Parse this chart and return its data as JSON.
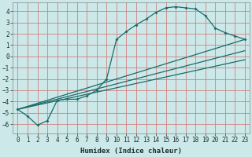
{
  "xlabel": "Humidex (Indice chaleur)",
  "bg_color": "#cce8e8",
  "grid_color": "#d08080",
  "line_color": "#1a6b6b",
  "xlim": [
    -0.5,
    23.5
  ],
  "ylim": [
    -6.8,
    4.8
  ],
  "xticks": [
    0,
    1,
    2,
    3,
    4,
    5,
    6,
    7,
    8,
    9,
    10,
    11,
    12,
    13,
    14,
    15,
    16,
    17,
    18,
    19,
    20,
    21,
    22,
    23
  ],
  "yticks": [
    -6,
    -5,
    -4,
    -3,
    -2,
    -1,
    0,
    1,
    2,
    3,
    4
  ],
  "line1_x": [
    0,
    1,
    2,
    3,
    4,
    5,
    6,
    7,
    8,
    9,
    10,
    11,
    12,
    13,
    14,
    15,
    16,
    17,
    18,
    19,
    20,
    21,
    22,
    23
  ],
  "line1_y": [
    -4.7,
    -5.3,
    -6.1,
    -5.7,
    -3.9,
    -3.8,
    -3.8,
    -3.5,
    -3.0,
    -2.0,
    1.5,
    2.2,
    2.8,
    3.3,
    3.9,
    4.3,
    4.4,
    4.3,
    4.2,
    3.6,
    2.5,
    2.1,
    1.8,
    1.5
  ],
  "line2_x": [
    0,
    23
  ],
  "line2_y": [
    -4.7,
    -0.3
  ],
  "line3_x": [
    0,
    23
  ],
  "line3_y": [
    -4.7,
    0.5
  ],
  "line4_x": [
    0,
    23
  ],
  "line4_y": [
    -4.7,
    1.5
  ]
}
